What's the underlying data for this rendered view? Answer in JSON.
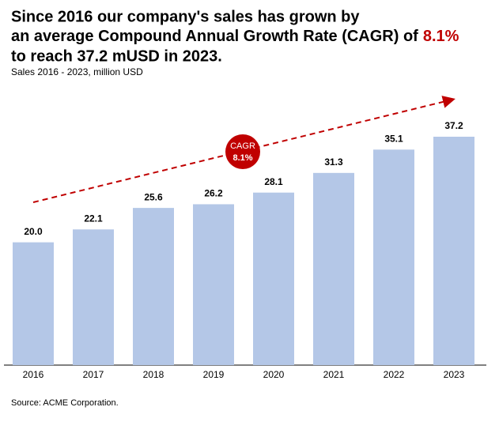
{
  "chart_data": {
    "type": "bar",
    "title": [
      "Since 2016 our company's sales has grown by",
      "an average Compound Annual Growth Rate (CAGR) of",
      "8.1%",
      "to reach 37.2 mUSD in 2023."
    ],
    "subtitle": "Sales 2016 - 2023, million USD",
    "categories": [
      "2016",
      "2017",
      "2018",
      "2019",
      "2020",
      "2021",
      "2022",
      "2023"
    ],
    "values": [
      20.0,
      22.1,
      25.6,
      26.2,
      28.1,
      31.3,
      35.1,
      37.2
    ],
    "value_labels": [
      "20.0",
      "22.1",
      "25.6",
      "26.2",
      "28.1",
      "31.3",
      "35.1",
      "37.2"
    ],
    "color": "#b4c7e7",
    "annotation": [
      "CAGR",
      "8.1%"
    ],
    "source": "Source: ACME Corporation."
  }
}
